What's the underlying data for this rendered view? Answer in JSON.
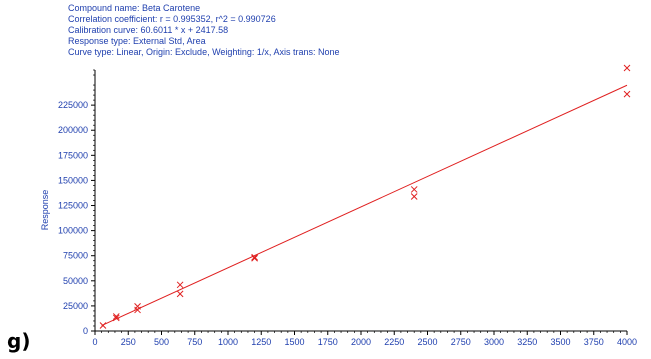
{
  "header": {
    "lines": [
      "Compound name: Beta Carotene",
      "Correlation coefficient: r = 0.995352, r^2 = 0.990726",
      "Calibration curve: 60.6011 * x + 2417.58",
      "Response type: External Std, Area",
      "Curve type: Linear, Origin: Exclude, Weighting: 1/x, Axis trans: None"
    ]
  },
  "panel_label": "g)",
  "colors": {
    "axis": "#000000",
    "text": "#1f3fae",
    "fit_line": "#e02020",
    "points": "#e02020"
  },
  "chart_data": {
    "type": "scatter",
    "title": "",
    "xlabel": "",
    "ylabel": "Response",
    "xlim": [
      0,
      4000
    ],
    "ylim": [
      0,
      260000
    ],
    "x_ticks": [
      0,
      250,
      500,
      750,
      1000,
      1250,
      1500,
      1750,
      2000,
      2250,
      2500,
      2750,
      3000,
      3250,
      3500,
      3750,
      4000
    ],
    "y_ticks": [
      0,
      25000,
      50000,
      75000,
      100000,
      125000,
      150000,
      175000,
      200000,
      225000
    ],
    "grid": false,
    "fit": {
      "slope": 60.6011,
      "intercept": 2417.58,
      "x_range": [
        50,
        4000
      ]
    },
    "points": [
      {
        "x": 60,
        "y": 5500
      },
      {
        "x": 160,
        "y": 13000
      },
      {
        "x": 160,
        "y": 14500
      },
      {
        "x": 320,
        "y": 21000
      },
      {
        "x": 320,
        "y": 24500
      },
      {
        "x": 640,
        "y": 37000
      },
      {
        "x": 640,
        "y": 46000
      },
      {
        "x": 1200,
        "y": 72500
      },
      {
        "x": 1200,
        "y": 73500
      },
      {
        "x": 2400,
        "y": 134000
      },
      {
        "x": 2400,
        "y": 141000
      },
      {
        "x": 4000,
        "y": 236000
      },
      {
        "x": 4000,
        "y": 262000
      }
    ]
  }
}
